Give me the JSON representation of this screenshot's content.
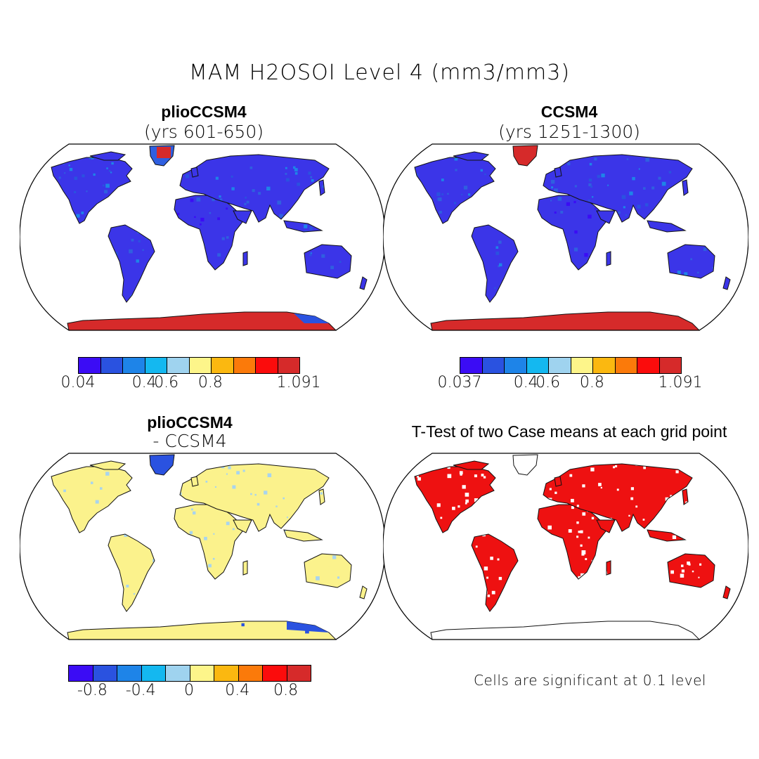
{
  "title": "MAM H2OSOI Level 4 (mm3/mm3)",
  "panels": [
    {
      "title": "plioCCSM4",
      "subtitle": "(yrs 601-650)"
    },
    {
      "title": "CCSM4",
      "subtitle": "(yrs 1251-1300)"
    },
    {
      "title": "plioCCSM4",
      "subtitle": "- CCSM4"
    },
    {
      "title": "T-Test of two Case means at each grid point",
      "subtitle": ""
    }
  ],
  "colors": {
    "palette": [
      "#3b0cf5",
      "#2a52e0",
      "#1e84e8",
      "#14b8f0",
      "#9fd3ef",
      "#fdf58a",
      "#fbb810",
      "#fb7a0a",
      "#fb0c0c",
      "#d62a2a"
    ],
    "land_low": "#3b35e8",
    "land_mid": "#2f5fe0",
    "ice_high": "#d62a2a",
    "diff_pos": "#fbf28c",
    "diff_neg": "#a8d4ee",
    "sig_red": "#ee1111"
  },
  "colorbars": [
    {
      "labels": [
        "0.04",
        "0.4",
        "0.6",
        "0.8",
        "1.091"
      ],
      "label_slots": [
        0,
        3,
        4,
        6,
        10
      ]
    },
    {
      "labels": [
        "0.037",
        "0.4",
        "0.6",
        "0.8",
        "1.091"
      ],
      "label_slots": [
        0,
        3,
        4,
        6,
        10
      ]
    },
    {
      "labels": [
        "-0.8",
        "-0.4",
        "0",
        "0.4",
        "0.8"
      ],
      "label_slots": [
        1,
        3,
        5,
        7,
        9
      ]
    }
  ],
  "note": "Cells are significant at 0.1 level"
}
